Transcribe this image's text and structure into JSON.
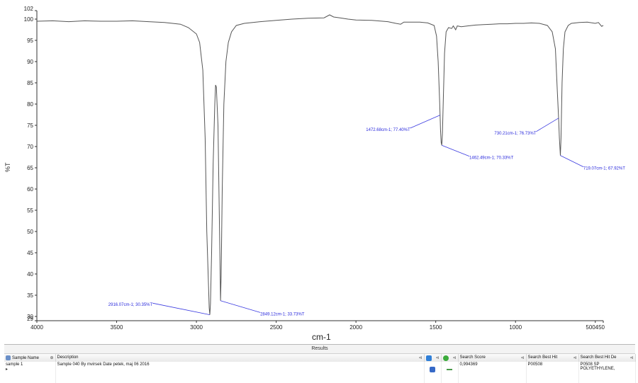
{
  "chart_data": {
    "type": "line",
    "title": "",
    "xlabel": "cm-1",
    "ylabel": "%T",
    "xlim": [
      4000,
      450
    ],
    "ylim": [
      29,
      102
    ],
    "x_ticks": [
      "4000",
      "3500",
      "3000",
      "2500",
      "2000",
      "1500",
      "1000",
      "500",
      "450"
    ],
    "x_tick_values": [
      4000,
      3500,
      3000,
      2500,
      2000,
      1500,
      1000,
      500,
      450
    ],
    "y_ticks": [
      "102",
      "100",
      "95",
      "90",
      "85",
      "80",
      "75",
      "70",
      "65",
      "60",
      "55",
      "50",
      "45",
      "40",
      "35",
      "30",
      "29"
    ],
    "y_tick_values": [
      102,
      100,
      95,
      90,
      85,
      80,
      75,
      70,
      65,
      60,
      55,
      50,
      45,
      40,
      35,
      30,
      29
    ],
    "series": [
      {
        "color": "#555555",
        "points": [
          [
            4000,
            99.5
          ],
          [
            3900,
            99.6
          ],
          [
            3800,
            99.4
          ],
          [
            3700,
            99.6
          ],
          [
            3600,
            99.5
          ],
          [
            3500,
            99.5
          ],
          [
            3400,
            99.6
          ],
          [
            3300,
            99.4
          ],
          [
            3200,
            99.2
          ],
          [
            3100,
            98.8
          ],
          [
            3050,
            98.0
          ],
          [
            3000,
            96.5
          ],
          [
            2980,
            94.5
          ],
          [
            2960,
            88.0
          ],
          [
            2945,
            72.0
          ],
          [
            2935,
            50.0
          ],
          [
            2925,
            38.0
          ],
          [
            2920,
            32.0
          ],
          [
            2916,
            30.4
          ],
          [
            2912,
            33.0
          ],
          [
            2905,
            45.0
          ],
          [
            2895,
            66.0
          ],
          [
            2885,
            80.0
          ],
          [
            2880,
            84.5
          ],
          [
            2875,
            84.0
          ],
          [
            2865,
            75.0
          ],
          [
            2858,
            58.0
          ],
          [
            2852,
            42.0
          ],
          [
            2849,
            33.7
          ],
          [
            2845,
            40.0
          ],
          [
            2838,
            60.0
          ],
          [
            2828,
            80.0
          ],
          [
            2815,
            90.0
          ],
          [
            2800,
            94.5
          ],
          [
            2780,
            97.0
          ],
          [
            2750,
            98.5
          ],
          [
            2700,
            99.0
          ],
          [
            2600,
            99.4
          ],
          [
            2500,
            99.7
          ],
          [
            2400,
            100.0
          ],
          [
            2300,
            100.2
          ],
          [
            2200,
            100.3
          ],
          [
            2165,
            101.0
          ],
          [
            2140,
            100.5
          ],
          [
            2100,
            100.3
          ],
          [
            2050,
            100.0
          ],
          [
            2000,
            99.8
          ],
          [
            1900,
            99.7
          ],
          [
            1800,
            99.4
          ],
          [
            1750,
            99.0
          ],
          [
            1720,
            98.8
          ],
          [
            1700,
            99.3
          ],
          [
            1600,
            99.3
          ],
          [
            1550,
            99.1
          ],
          [
            1510,
            98.5
          ],
          [
            1495,
            96.0
          ],
          [
            1485,
            90.0
          ],
          [
            1476,
            81.0
          ],
          [
            1473,
            77.4
          ],
          [
            1470,
            74.0
          ],
          [
            1466,
            71.0
          ],
          [
            1462,
            70.3
          ],
          [
            1458,
            73.0
          ],
          [
            1452,
            82.0
          ],
          [
            1445,
            92.0
          ],
          [
            1435,
            97.0
          ],
          [
            1420,
            98.0
          ],
          [
            1400,
            97.8
          ],
          [
            1390,
            98.4
          ],
          [
            1375,
            97.5
          ],
          [
            1365,
            98.4
          ],
          [
            1340,
            98.2
          ],
          [
            1300,
            98.4
          ],
          [
            1250,
            98.6
          ],
          [
            1200,
            98.7
          ],
          [
            1150,
            98.8
          ],
          [
            1100,
            98.9
          ],
          [
            1050,
            98.9
          ],
          [
            1000,
            99.0
          ],
          [
            950,
            99.0
          ],
          [
            900,
            99.1
          ],
          [
            850,
            99.0
          ],
          [
            800,
            98.5
          ],
          [
            770,
            97.0
          ],
          [
            750,
            93.0
          ],
          [
            738,
            83.0
          ],
          [
            730,
            76.7
          ],
          [
            725,
            72.0
          ],
          [
            719,
            67.9
          ],
          [
            715,
            72.0
          ],
          [
            708,
            85.0
          ],
          [
            700,
            93.0
          ],
          [
            690,
            97.0
          ],
          [
            670,
            98.5
          ],
          [
            650,
            99.0
          ],
          [
            600,
            99.2
          ],
          [
            550,
            99.3
          ],
          [
            500,
            99.0
          ],
          [
            480,
            99.2
          ],
          [
            460,
            98.3
          ],
          [
            450,
            98.5
          ]
        ]
      }
    ],
    "annotations": [
      {
        "text": "2916.07cm-1; 30.35%T",
        "x": 2916,
        "y": 30.4,
        "label_x": 3275,
        "label_y": 32.8
      },
      {
        "text": "2849.12cm-1; 33.73%T",
        "x": 2849,
        "y": 33.7,
        "label_x": 2600,
        "label_y": 30.6
      },
      {
        "text": "1472.68cm-1; 77.40%T",
        "x": 1473,
        "y": 77.4,
        "label_x": 1660,
        "label_y": 74.0
      },
      {
        "text": "1462.49cm-1; 70.33%T",
        "x": 1462,
        "y": 70.3,
        "label_x": 1290,
        "label_y": 67.4
      },
      {
        "text": "730.21cm-1; 76.73%T",
        "x": 730,
        "y": 76.7,
        "label_x": 870,
        "label_y": 73.2
      },
      {
        "text": "719.07cm-1; 67.92%T",
        "x": 719,
        "y": 67.9,
        "label_x": 575,
        "label_y": 64.9
      }
    ],
    "grid": false,
    "legend": "none"
  },
  "results": {
    "title": "Results",
    "columns": [
      {
        "label": "Sample Name"
      },
      {
        "label": "Description"
      },
      {
        "label": ""
      },
      {
        "label": ""
      },
      {
        "label": "Search Score"
      },
      {
        "label": "Search Best Hit"
      },
      {
        "label": "Search Best Hit De"
      }
    ],
    "row": {
      "sample_name": "sample 1",
      "description": "Sample 040 By mvirsek Date petek, maj 06 2016",
      "search_score": "0,994369",
      "search_best_hit": "P00508",
      "search_best_hit_desc_1": "P0508 SP",
      "search_best_hit_desc_2": "POLYETHYLENE,"
    },
    "icons": {
      "header": [
        "grid-icon",
        "pin-icon",
        "blue-flag-icon",
        "green-check-icon",
        "save-icon",
        "minus-icon"
      ]
    }
  }
}
